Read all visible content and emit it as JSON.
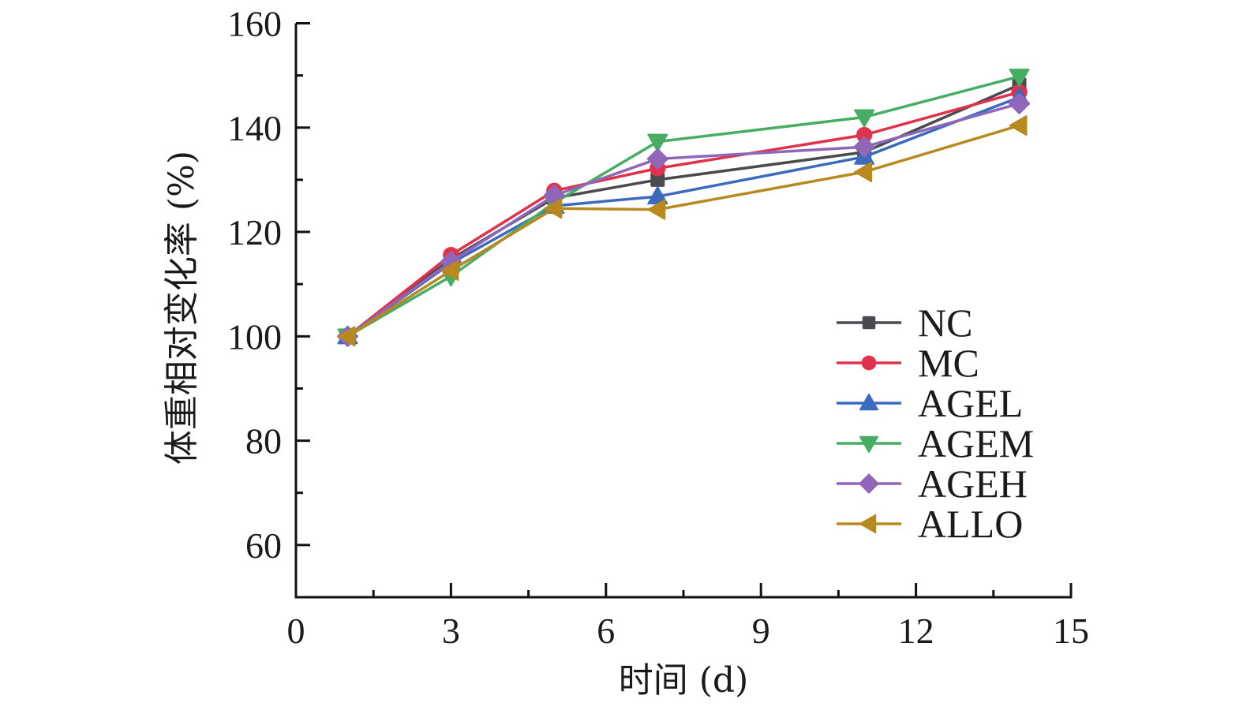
{
  "chart_data": {
    "type": "line",
    "title": "",
    "xlabel": "时间 (d)",
    "ylabel": "体重相对变化率 (%)",
    "xlim": [
      0,
      15
    ],
    "ylim": [
      50,
      160
    ],
    "xticks": [
      0,
      3,
      6,
      9,
      12,
      15
    ],
    "xtick_labels": [
      "0",
      "3",
      "6",
      "9",
      "12",
      "15"
    ],
    "x_minor_step": 1.5,
    "yticks": [
      60,
      80,
      100,
      120,
      140,
      160
    ],
    "ytick_labels": [
      "60",
      "80",
      "100",
      "120",
      "140",
      "160"
    ],
    "y_minor_step": 10,
    "grid": false,
    "legend_position": "right-middle",
    "x": [
      1,
      3,
      5,
      7,
      11,
      14
    ],
    "series": [
      {
        "name": "NC",
        "color": "#4a4b50",
        "marker": "square",
        "values": [
          100,
          114.8,
          126.5,
          130.0,
          135.3,
          148.2
        ]
      },
      {
        "name": "MC",
        "color": "#e0324a",
        "marker": "circle",
        "values": [
          100,
          115.6,
          127.9,
          132.2,
          138.6,
          146.8
        ]
      },
      {
        "name": "AGEL",
        "color": "#3b6bbf",
        "marker": "triangle-up",
        "values": [
          100,
          114.0,
          125.0,
          126.8,
          134.4,
          145.8
        ]
      },
      {
        "name": "AGEM",
        "color": "#46ad62",
        "marker": "triangle-down",
        "values": [
          100,
          111.5,
          125.6,
          137.3,
          142.0,
          149.8
        ]
      },
      {
        "name": "AGEH",
        "color": "#8f66b8",
        "marker": "diamond",
        "values": [
          100,
          114.3,
          127.0,
          134.0,
          136.3,
          144.6
        ]
      },
      {
        "name": "ALLO",
        "color": "#b8891f",
        "marker": "triangle-left",
        "values": [
          100,
          112.6,
          124.5,
          124.3,
          131.5,
          140.4
        ]
      }
    ]
  }
}
